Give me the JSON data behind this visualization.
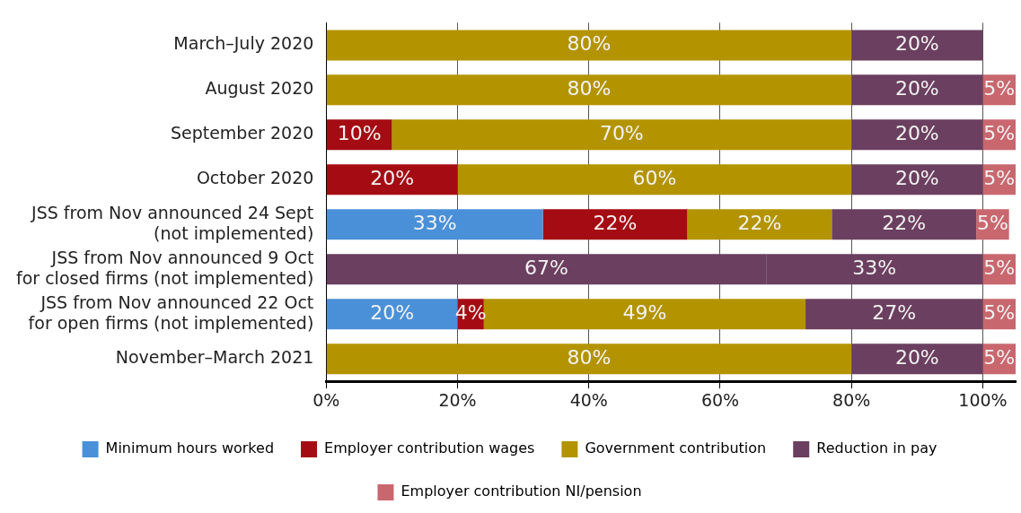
{
  "chart_data": {
    "type": "bar",
    "orientation": "horizontal",
    "stacked": true,
    "categories": [
      "March–July 2020",
      "August 2020",
      "September 2020",
      "October 2020",
      "JSS from Nov announced 24 Sept (not implemented)",
      "JSS from Nov announced 9 Oct for closed firms (not implemented)",
      "JSS from Nov announced 22 Oct for open firms (not implemented)",
      "November–March 2021"
    ],
    "series": [
      {
        "name": "Minimum hours worked",
        "color": "#4a90d9",
        "values": [
          null,
          null,
          null,
          null,
          33,
          null,
          20,
          null
        ],
        "value_labels": [
          null,
          null,
          null,
          null,
          "33%",
          null,
          "20%",
          null
        ]
      },
      {
        "name": "Employer contribution wages",
        "color": "#a50b12",
        "values": [
          null,
          null,
          10,
          20,
          22,
          null,
          4,
          null
        ],
        "value_labels": [
          null,
          null,
          "10%",
          "20%",
          "22%",
          null,
          "4%",
          null
        ]
      },
      {
        "name": "Government contribution",
        "color": "#b39400",
        "colors": [
          "#b39400",
          "#b39400",
          "#b39400",
          "#b39400",
          "#b39400",
          "#6b3f5f",
          "#b39400",
          "#b39400"
        ],
        "values": [
          80,
          80,
          70,
          60,
          22,
          67,
          49,
          80
        ],
        "value_labels": [
          "80%",
          "80%",
          "70%",
          "60%",
          "22%",
          "67%",
          "49%",
          "80%"
        ]
      },
      {
        "name": "Reduction in pay",
        "color": "#6b3f5f",
        "values": [
          20,
          20,
          20,
          20,
          22,
          33,
          27,
          20
        ],
        "value_labels": [
          "20%",
          "20%",
          "20%",
          "20%",
          "22%",
          "33%",
          "27%",
          "20%"
        ]
      },
      {
        "name": "Employer contribution NI/pension",
        "color": "#c9676f",
        "values": [
          null,
          5,
          5,
          5,
          5,
          5,
          5,
          5
        ],
        "value_labels": [
          null,
          "5%",
          "5%",
          "5%",
          "5%",
          "5%",
          "5%",
          "5%"
        ]
      }
    ],
    "xlim": [
      0,
      105
    ],
    "xticks": [
      {
        "value": 0,
        "label": "0%"
      },
      {
        "value": 20,
        "label": "20%"
      },
      {
        "value": 40,
        "label": "40%"
      },
      {
        "value": 60,
        "label": "60%"
      },
      {
        "value": 80,
        "label": "80%"
      },
      {
        "value": 100,
        "label": "100%"
      }
    ],
    "grid": "x",
    "legend": "bottom"
  }
}
